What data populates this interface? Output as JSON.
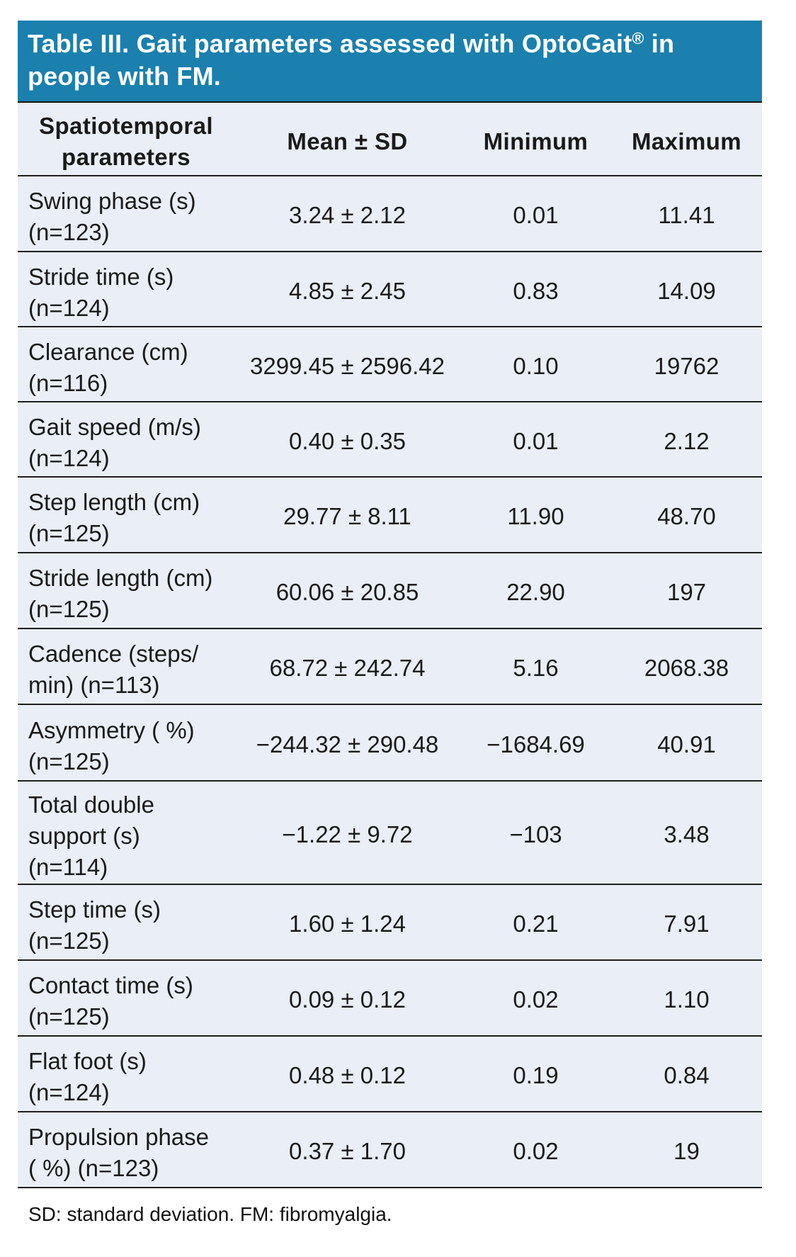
{
  "colors": {
    "title_bar_bg": "#1b80ad",
    "title_text": "#ffffff",
    "table_bg": "#e9eef7",
    "rule": "#1e1e1e",
    "body_text": "#1a1a1a",
    "page_bg": "#ffffff"
  },
  "title": {
    "before_mark": "Table III. Gait parameters assessed with OptoGait",
    "registered_mark": "®",
    "after_mark": " in\npeople with FM."
  },
  "table": {
    "columns": [
      "Spatiotemporal\nparameters",
      "Mean ± SD",
      "Minimum",
      "Maximum"
    ],
    "rows": [
      {
        "parameter": "Swing phase (s)\n(n=123)",
        "mean_sd": "3.24 ± 2.12",
        "minimum": "0.01",
        "maximum": "11.41"
      },
      {
        "parameter": "Stride time (s)\n(n=124)",
        "mean_sd": "4.85 ± 2.45",
        "minimum": "0.83",
        "maximum": "14.09"
      },
      {
        "parameter": "Clearance (cm)\n(n=116)",
        "mean_sd": "3299.45 ± 2596.42",
        "minimum": "0.10",
        "maximum": "19762"
      },
      {
        "parameter": "Gait speed (m/s)\n(n=124)",
        "mean_sd": "0.40 ± 0.35",
        "minimum": "0.01",
        "maximum": "2.12"
      },
      {
        "parameter": "Step length (cm)\n(n=125)",
        "mean_sd": "29.77 ± 8.11",
        "minimum": "11.90",
        "maximum": "48.70"
      },
      {
        "parameter": "Stride length (cm)\n(n=125)",
        "mean_sd": "60.06 ± 20.85",
        "minimum": "22.90",
        "maximum": "197"
      },
      {
        "parameter": "Cadence (steps/\nmin) (n=113)",
        "mean_sd": "68.72 ± 242.74",
        "minimum": "5.16",
        "maximum": "2068.38"
      },
      {
        "parameter": "Asymmetry ( %)\n(n=125)",
        "mean_sd": "−244.32 ± 290.48",
        "minimum": "−1684.69",
        "maximum": "40.91"
      },
      {
        "parameter": "Total double\nsupport (s)\n(n=114)",
        "mean_sd": "−1.22 ± 9.72",
        "minimum": "−103",
        "maximum": "3.48"
      },
      {
        "parameter": "Step time (s)\n(n=125)",
        "mean_sd": "1.60 ± 1.24",
        "minimum": "0.21",
        "maximum": "7.91"
      },
      {
        "parameter": "Contact time (s)\n(n=125)",
        "mean_sd": "0.09 ± 0.12",
        "minimum": "0.02",
        "maximum": "1.10"
      },
      {
        "parameter": "Flat foot (s)\n(n=124)",
        "mean_sd": "0.48 ± 0.12",
        "minimum": "0.19",
        "maximum": "0.84"
      },
      {
        "parameter": "Propulsion phase\n( %) (n=123)",
        "mean_sd": "0.37 ± 1.70",
        "minimum": "0.02",
        "maximum": "19"
      }
    ]
  },
  "footnote": "SD: standard deviation. FM: fibromyalgia."
}
